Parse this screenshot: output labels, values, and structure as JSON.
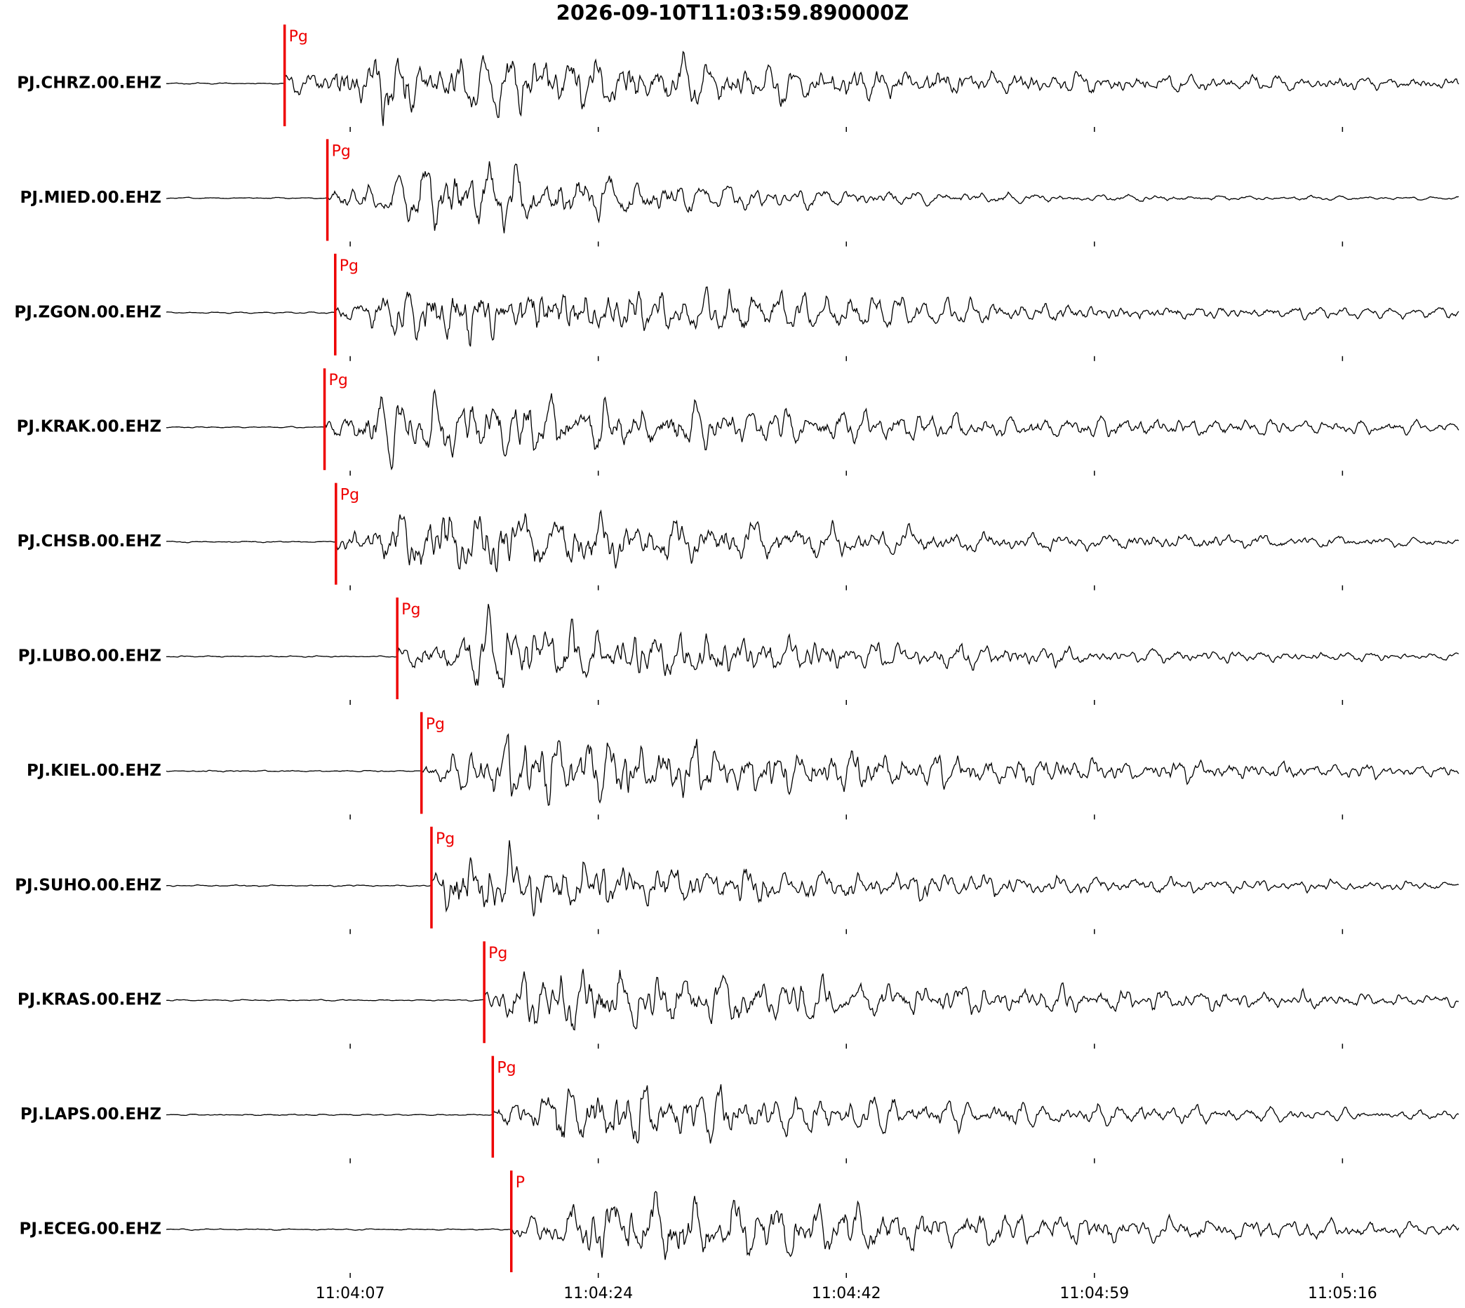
{
  "chart_data": {
    "type": "seismogram",
    "title": "2026-09-10T11:03:59.890000Z",
    "xlim": [
      -5.6,
      85.1
    ],
    "xticks": [
      {
        "value": 7.3,
        "label": "11:04:07"
      },
      {
        "value": 24.7,
        "label": "11:04:24"
      },
      {
        "value": 42.1,
        "label": "11:04:42"
      },
      {
        "value": 59.5,
        "label": "11:04:59"
      },
      {
        "value": 76.9,
        "label": "11:05:16"
      }
    ],
    "pick_color": "#e00",
    "series": [
      {
        "name": "PJ.CHRZ.00.EHZ",
        "color": "#000",
        "pick_label": "Pg",
        "pick": 2.7
      },
      {
        "name": "PJ.MIED.00.EHZ",
        "color": "#000",
        "pick_label": "Pg",
        "pick": 5.7
      },
      {
        "name": "PJ.ZGON.00.EHZ",
        "color": "#000",
        "pick_label": "Pg",
        "pick": 6.25
      },
      {
        "name": "PJ.KRAK.00.EHZ",
        "color": "#000",
        "pick_label": "Pg",
        "pick": 5.5
      },
      {
        "name": "PJ.CHSB.00.EHZ",
        "color": "#000",
        "pick_label": "Pg",
        "pick": 6.3
      },
      {
        "name": "PJ.LUBO.00.EHZ",
        "color": "#000",
        "pick_label": "Pg",
        "pick": 10.6
      },
      {
        "name": "PJ.KIEL.00.EHZ",
        "color": "#000",
        "pick_label": "Pg",
        "pick": 12.3
      },
      {
        "name": "PJ.SUHO.00.EHZ",
        "color": "#000",
        "pick_label": "Pg",
        "pick": 13.0
      },
      {
        "name": "PJ.KRAS.00.EHZ",
        "color": "#000",
        "pick_label": "Pg",
        "pick": 16.7
      },
      {
        "name": "PJ.LAPS.00.EHZ",
        "color": "#000",
        "pick_label": "Pg",
        "pick": 17.3
      },
      {
        "name": "PJ.ECEG.00.EHZ",
        "color": "#000",
        "pick_label": "P",
        "pick": 18.6
      }
    ]
  }
}
